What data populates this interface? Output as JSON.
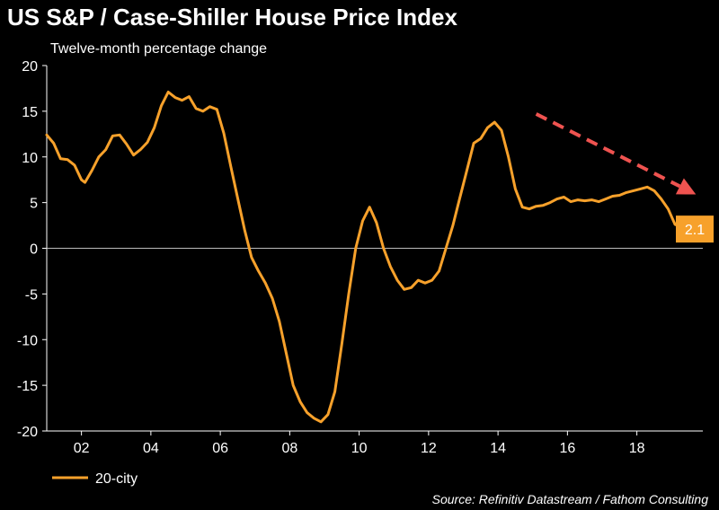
{
  "header": {
    "title": "US S&P / Case-Shiller House Price Index",
    "subtitle": "Twelve-month percentage change"
  },
  "footer": {
    "source": "Source: Refinitiv Datastream / Fathom Consulting"
  },
  "colors": {
    "series": "#f7a12b",
    "arrow": "#ef5350",
    "zero_line": "#bbbbbb",
    "background": "#000000"
  },
  "chart_data": {
    "type": "line",
    "title": "US S&P / Case-Shiller House Price Index",
    "subtitle": "Twelve-month percentage change",
    "xlabel": "",
    "ylabel": "",
    "xlim": [
      2001,
      2019.9
    ],
    "ylim": [
      -20,
      20
    ],
    "x_ticks": [
      2002,
      2004,
      2006,
      2008,
      2010,
      2012,
      2014,
      2016,
      2018
    ],
    "x_tick_labels": [
      "02",
      "04",
      "06",
      "08",
      "10",
      "12",
      "14",
      "16",
      "18"
    ],
    "y_ticks": [
      20,
      15,
      10,
      5,
      0,
      -5,
      -10,
      -15,
      -20
    ],
    "y_tick_labels": [
      "20",
      "15",
      "10",
      "5",
      "0",
      "-5",
      "-10",
      "-15",
      "-20"
    ],
    "grid": false,
    "legend_position": "bottom-left",
    "series": [
      {
        "name": "20-city",
        "color": "#f7a12b",
        "x": [
          2001.0,
          2001.2,
          2001.4,
          2001.6,
          2001.8,
          2002.0,
          2002.1,
          2002.3,
          2002.5,
          2002.7,
          2002.9,
          2003.1,
          2003.3,
          2003.5,
          2003.7,
          2003.9,
          2004.1,
          2004.3,
          2004.5,
          2004.7,
          2004.9,
          2005.1,
          2005.3,
          2005.5,
          2005.7,
          2005.9,
          2006.1,
          2006.3,
          2006.5,
          2006.7,
          2006.9,
          2007.1,
          2007.3,
          2007.5,
          2007.7,
          2007.9,
          2008.1,
          2008.3,
          2008.5,
          2008.7,
          2008.9,
          2009.1,
          2009.3,
          2009.5,
          2009.7,
          2009.9,
          2010.1,
          2010.3,
          2010.5,
          2010.7,
          2010.9,
          2011.1,
          2011.3,
          2011.5,
          2011.7,
          2011.9,
          2012.1,
          2012.3,
          2012.5,
          2012.7,
          2012.9,
          2013.1,
          2013.3,
          2013.5,
          2013.7,
          2013.9,
          2014.1,
          2014.3,
          2014.5,
          2014.7,
          2014.9,
          2015.1,
          2015.3,
          2015.5,
          2015.7,
          2015.9,
          2016.1,
          2016.3,
          2016.5,
          2016.7,
          2016.9,
          2017.1,
          2017.3,
          2017.5,
          2017.7,
          2017.9,
          2018.1,
          2018.3,
          2018.5,
          2018.7,
          2018.9,
          2019.1,
          2019.3,
          2019.5,
          2019.7
        ],
        "values": [
          12.4,
          11.5,
          9.8,
          9.7,
          9.1,
          7.5,
          7.2,
          8.5,
          10.0,
          10.8,
          12.3,
          12.4,
          11.4,
          10.2,
          10.8,
          11.6,
          13.2,
          15.6,
          17.1,
          16.5,
          16.2,
          16.6,
          15.3,
          15.0,
          15.5,
          15.2,
          12.6,
          9.0,
          5.5,
          2.0,
          -1.0,
          -2.5,
          -3.8,
          -5.5,
          -8.0,
          -11.5,
          -15.0,
          -16.8,
          -18.0,
          -18.6,
          -19.0,
          -18.2,
          -15.7,
          -10.5,
          -5.0,
          0.0,
          3.0,
          4.5,
          2.8,
          0.0,
          -2.0,
          -3.5,
          -4.5,
          -4.3,
          -3.5,
          -3.8,
          -3.5,
          -2.5,
          0.0,
          2.5,
          5.5,
          8.5,
          11.5,
          12.0,
          13.2,
          13.8,
          12.9,
          10.0,
          6.5,
          4.5,
          4.3,
          4.6,
          4.7,
          5.0,
          5.4,
          5.6,
          5.1,
          5.3,
          5.2,
          5.3,
          5.1,
          5.4,
          5.7,
          5.8,
          6.1,
          6.3,
          6.5,
          6.7,
          6.3,
          5.4,
          4.3,
          2.6,
          2.3,
          2.1,
          2.1
        ]
      }
    ],
    "last_value_label": "2.1",
    "annotations": [
      {
        "type": "arrow",
        "from": [
          2015.1,
          14.7
        ],
        "to": [
          2019.7,
          5.9
        ]
      }
    ]
  }
}
